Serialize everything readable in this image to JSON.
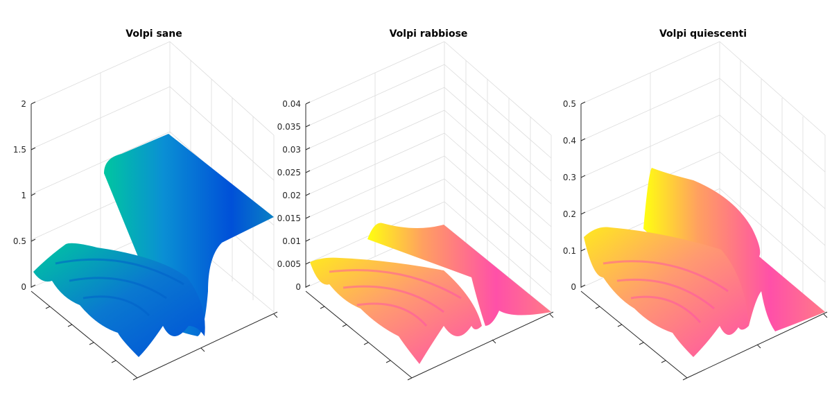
{
  "chart_data": [
    {
      "type": "surface",
      "title": "Volpi sane",
      "zlim": [
        0,
        2
      ],
      "zticks": [
        "0",
        "0.5",
        "1",
        "1.5",
        "2"
      ],
      "grid": true,
      "colormap": "parula-like (teal/blue)",
      "colors": {
        "high": "#00c6a0",
        "mid": "#0a8fd4",
        "low": "#0050d8"
      }
    },
    {
      "type": "surface",
      "title": "Volpi rabbiose",
      "zlim": [
        0,
        0.04
      ],
      "zticks": [
        "0",
        "0.005",
        "0.01",
        "0.015",
        "0.02",
        "0.025",
        "0.03",
        "0.035",
        "0.04"
      ],
      "grid": true,
      "colormap": "spring-like (yellow/pink)",
      "colors": {
        "high": "#ffff10",
        "mid": "#ff9a70",
        "low": "#ff4fa8"
      }
    },
    {
      "type": "surface",
      "title": "Volpi quiescenti",
      "zlim": [
        0,
        0.5
      ],
      "zticks": [
        "0",
        "0.1",
        "0.2",
        "0.3",
        "0.4",
        "0.5"
      ],
      "grid": true,
      "colormap": "spring-like (yellow/pink)",
      "colors": {
        "high": "#ffff10",
        "mid": "#ff9a70",
        "low": "#ff4fa8"
      }
    }
  ]
}
